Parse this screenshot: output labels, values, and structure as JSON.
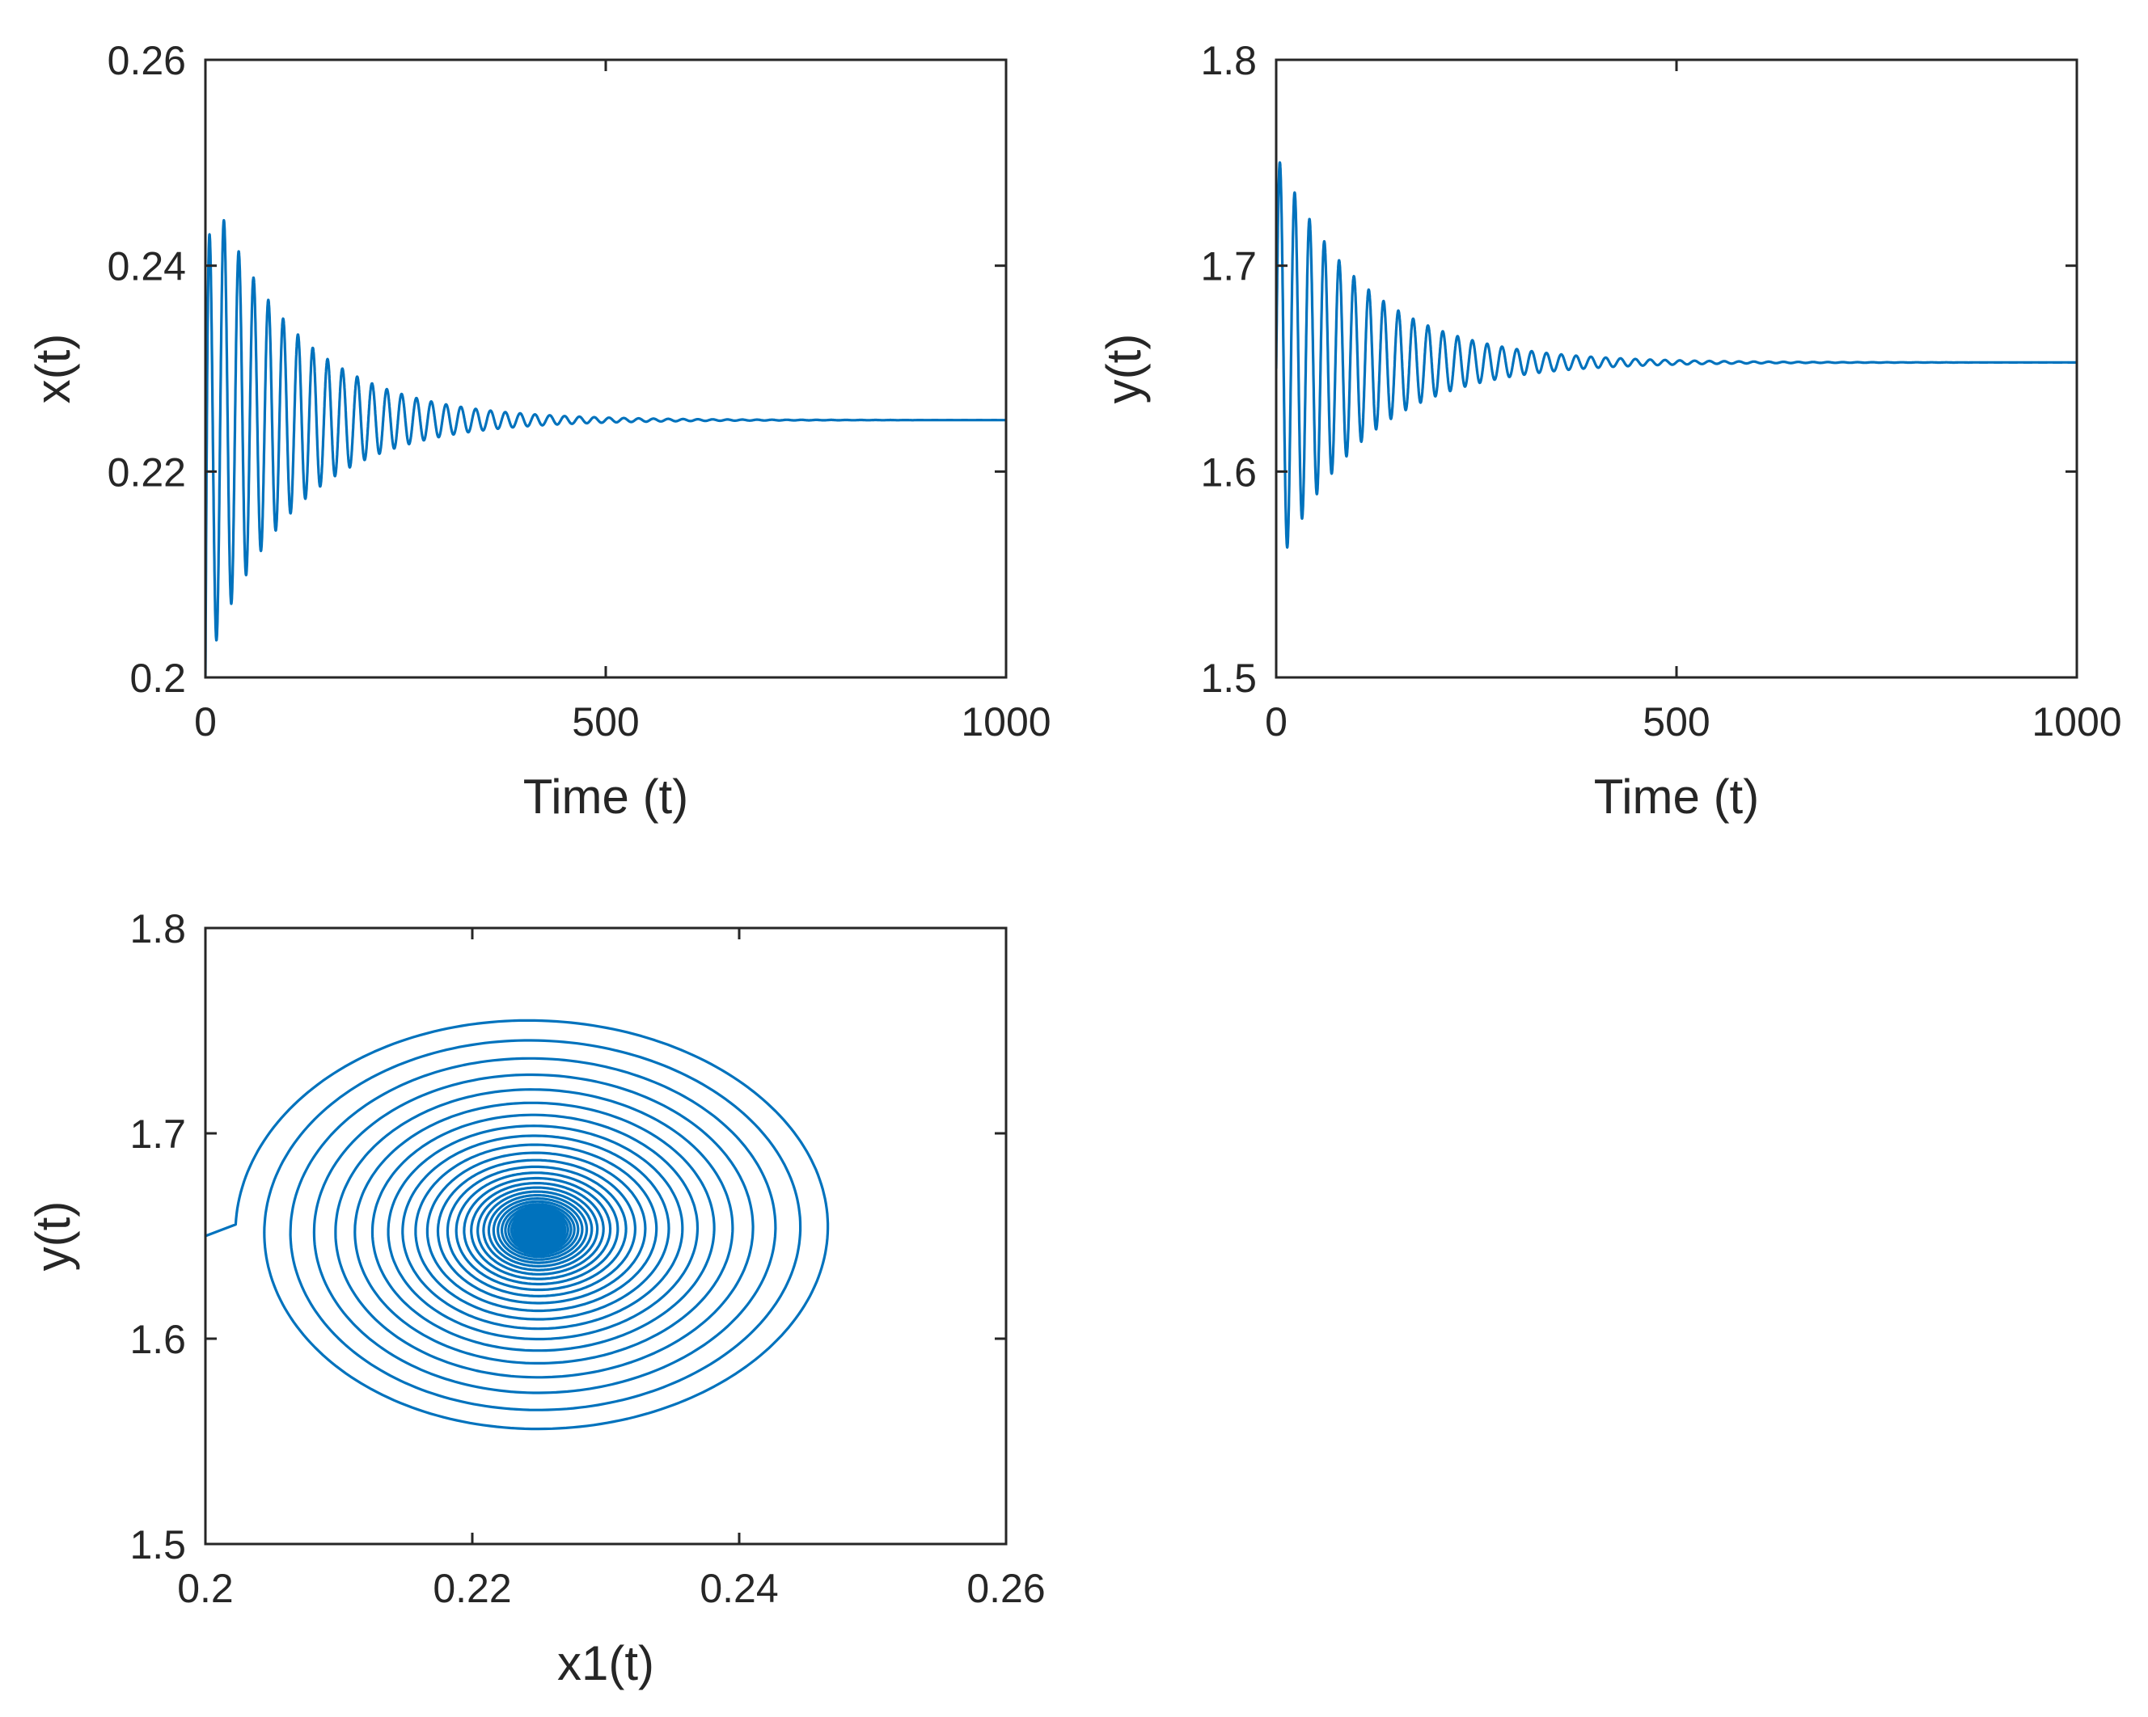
{
  "chart_data": [
    {
      "id": "x-time",
      "type": "line",
      "xlabel": "Time (t)",
      "ylabel": "x(t)",
      "xlim": [
        0,
        1000
      ],
      "ylim": [
        0.2,
        0.26
      ],
      "xticks": [
        0,
        500,
        1000
      ],
      "xtick_labels": [
        "0",
        "500",
        "1000"
      ],
      "yticks": [
        0.2,
        0.22,
        0.24,
        0.26
      ],
      "ytick_labels": [
        "0.2",
        "0.22",
        "0.24",
        "0.26"
      ],
      "grid": false,
      "series": [
        {
          "color": "#0072BD",
          "start": 0.2,
          "equilibrium": 0.225,
          "first_peak": 0.249,
          "first_trough": 0.2035,
          "period": 18.5,
          "settles_by": 600
        }
      ]
    },
    {
      "id": "y-time",
      "type": "line",
      "xlabel": "Time (t)",
      "ylabel": "y(t)",
      "xlim": [
        0,
        1000
      ],
      "ylim": [
        1.5,
        1.8
      ],
      "xticks": [
        0,
        500,
        1000
      ],
      "xtick_labels": [
        "0",
        "500",
        "1000"
      ],
      "yticks": [
        1.5,
        1.6,
        1.7,
        1.8
      ],
      "ytick_labels": [
        "1.5",
        "1.6",
        "1.7",
        "1.8"
      ],
      "grid": false,
      "series": [
        {
          "color": "#0072BD",
          "start": 1.65,
          "equilibrium": 1.653,
          "first_peak": 1.755,
          "first_trough": 1.546,
          "period": 18.5,
          "settles_by": 600
        }
      ]
    },
    {
      "id": "phase",
      "type": "line",
      "xlabel": "x1(t)",
      "ylabel": "y(t)",
      "xlim": [
        0.2,
        0.26
      ],
      "ylim": [
        1.5,
        1.8
      ],
      "xticks": [
        0.2,
        0.22,
        0.24,
        0.26
      ],
      "xtick_labels": [
        "0.2",
        "0.22",
        "0.24",
        "0.26"
      ],
      "yticks": [
        1.5,
        1.6,
        1.7,
        1.8
      ],
      "ytick_labels": [
        "1.5",
        "1.6",
        "1.7",
        "1.8"
      ],
      "grid": false,
      "series": [
        {
          "color": "#0072BD",
          "start": [
            0.2,
            1.65
          ],
          "equilibrium": [
            0.225,
            1.653
          ],
          "outer_x_range": [
            0.2035,
            0.249
          ],
          "outer_y_range": [
            1.546,
            1.755
          ]
        }
      ]
    }
  ]
}
